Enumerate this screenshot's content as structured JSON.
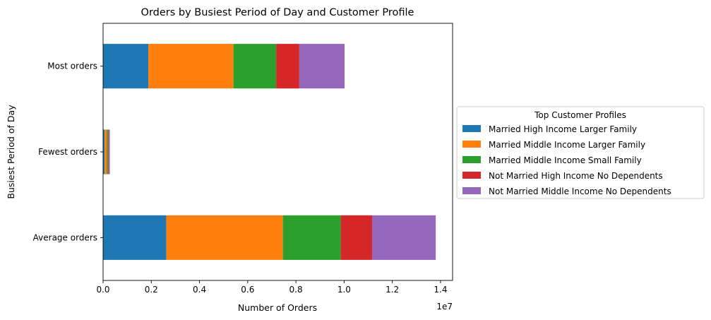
{
  "chart_data": {
    "type": "bar",
    "orientation": "horizontal",
    "stacked": true,
    "title": "Orders by Busiest Period of Day and Customer Profile",
    "xlabel": "Number of Orders",
    "ylabel": "Busiest Period of Day",
    "x_offset_label": "1e7",
    "x_scale_factor": 10000000,
    "xlim": [
      0,
      14500000
    ],
    "x_ticks": [
      0,
      2000000,
      4000000,
      6000000,
      8000000,
      10000000,
      12000000,
      14000000
    ],
    "x_tick_labels": [
      "0.0",
      "0.2",
      "0.4",
      "0.6",
      "0.8",
      "1.0",
      "1.2",
      "1.4"
    ],
    "categories": [
      "Average orders",
      "Fewest orders",
      "Most orders"
    ],
    "legend": {
      "title": "Top Customer Profiles",
      "placement": "center-right outside"
    },
    "series": [
      {
        "name": "Married High Income Larger Family",
        "color": "#1f77b4",
        "values": [
          2620000,
          60000,
          1880000
        ]
      },
      {
        "name": "Married Middle Income Larger Family",
        "color": "#ff7f0e",
        "values": [
          4840000,
          90000,
          3530000
        ]
      },
      {
        "name": "Married Middle Income Small Family",
        "color": "#2ca02c",
        "values": [
          2400000,
          50000,
          1770000
        ]
      },
      {
        "name": "Not Married High Income No Dependents",
        "color": "#d62728",
        "values": [
          1300000,
          30000,
          960000
        ]
      },
      {
        "name": "Not Married Middle Income No Dependents",
        "color": "#9467bd",
        "values": [
          2640000,
          50000,
          1880000
        ]
      }
    ]
  }
}
